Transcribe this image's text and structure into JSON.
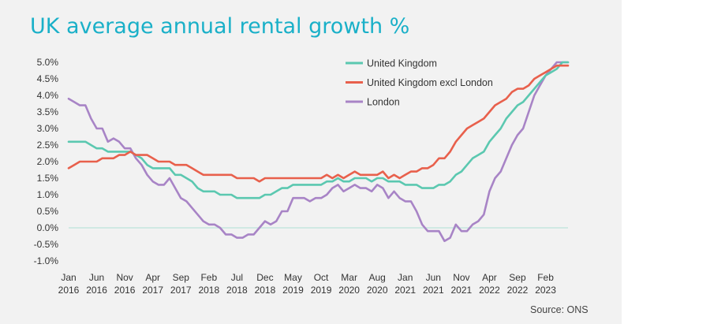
{
  "chart_data": {
    "type": "line",
    "title": "UK average annual rental growth %",
    "source": "Source: ONS",
    "xlabel": "",
    "ylabel": "",
    "ylim": [
      -1.0,
      5.0
    ],
    "y_ticks": [
      "5.0%",
      "4.5%",
      "4.0%",
      "3.5%",
      "3.0%",
      "2.5%",
      "2.0%",
      "1.5%",
      "1.0%",
      "0.5%",
      "0.0%",
      "-0.5%",
      "-1.0%"
    ],
    "x_ticks": [
      {
        "month": "Jan",
        "year": "2016",
        "idx": 0
      },
      {
        "month": "Jun",
        "year": "2016",
        "idx": 5
      },
      {
        "month": "Nov",
        "year": "2016",
        "idx": 10
      },
      {
        "month": "Apr",
        "year": "2017",
        "idx": 15
      },
      {
        "month": "Sep",
        "year": "2017",
        "idx": 20
      },
      {
        "month": "Feb",
        "year": "2018",
        "idx": 25
      },
      {
        "month": "Jul",
        "year": "2018",
        "idx": 30
      },
      {
        "month": "Dec",
        "year": "2018",
        "idx": 35
      },
      {
        "month": "May",
        "year": "2019",
        "idx": 40
      },
      {
        "month": "Oct",
        "year": "2019",
        "idx": 45
      },
      {
        "month": "Mar",
        "year": "2020",
        "idx": 50
      },
      {
        "month": "Aug",
        "year": "2020",
        "idx": 55
      },
      {
        "month": "Jan",
        "year": "2021",
        "idx": 60
      },
      {
        "month": "Jun",
        "year": "2021",
        "idx": 65
      },
      {
        "month": "Nov",
        "year": "2021",
        "idx": 70
      },
      {
        "month": "Apr",
        "year": "2022",
        "idx": 75
      },
      {
        "month": "Sep",
        "year": "2022",
        "idx": 80
      },
      {
        "month": "Feb",
        "year": "2023",
        "idx": 85
      }
    ],
    "x_count": 90,
    "legend_position": "top-right",
    "grid": false,
    "series": [
      {
        "name": "United Kingdom",
        "color": "#5bc8b0",
        "values": [
          2.6,
          2.6,
          2.6,
          2.6,
          2.5,
          2.4,
          2.4,
          2.3,
          2.3,
          2.3,
          2.3,
          2.3,
          2.2,
          2.1,
          1.9,
          1.8,
          1.8,
          1.8,
          1.8,
          1.6,
          1.6,
          1.5,
          1.4,
          1.2,
          1.1,
          1.1,
          1.1,
          1.0,
          1.0,
          1.0,
          0.9,
          0.9,
          0.9,
          0.9,
          0.9,
          1.0,
          1.0,
          1.1,
          1.2,
          1.2,
          1.3,
          1.3,
          1.3,
          1.3,
          1.3,
          1.3,
          1.4,
          1.4,
          1.5,
          1.4,
          1.4,
          1.5,
          1.5,
          1.5,
          1.4,
          1.5,
          1.5,
          1.4,
          1.4,
          1.4,
          1.3,
          1.3,
          1.3,
          1.2,
          1.2,
          1.2,
          1.3,
          1.3,
          1.4,
          1.6,
          1.7,
          1.9,
          2.1,
          2.2,
          2.3,
          2.6,
          2.8,
          3.0,
          3.3,
          3.5,
          3.7,
          3.8,
          4.0,
          4.2,
          4.4,
          4.6,
          4.7,
          4.8,
          5.0,
          5.0
        ]
      },
      {
        "name": "United Kingdom excl London",
        "color": "#e8604c",
        "values": [
          1.8,
          1.9,
          2.0,
          2.0,
          2.0,
          2.0,
          2.1,
          2.1,
          2.1,
          2.2,
          2.2,
          2.3,
          2.2,
          2.2,
          2.2,
          2.1,
          2.0,
          2.0,
          2.0,
          1.9,
          1.9,
          1.9,
          1.8,
          1.7,
          1.6,
          1.6,
          1.6,
          1.6,
          1.6,
          1.6,
          1.5,
          1.5,
          1.5,
          1.5,
          1.4,
          1.5,
          1.5,
          1.5,
          1.5,
          1.5,
          1.5,
          1.5,
          1.5,
          1.5,
          1.5,
          1.5,
          1.6,
          1.5,
          1.6,
          1.5,
          1.6,
          1.7,
          1.6,
          1.6,
          1.6,
          1.6,
          1.7,
          1.5,
          1.6,
          1.5,
          1.6,
          1.7,
          1.7,
          1.8,
          1.8,
          1.9,
          2.1,
          2.1,
          2.3,
          2.6,
          2.8,
          3.0,
          3.1,
          3.2,
          3.3,
          3.5,
          3.7,
          3.8,
          3.9,
          4.1,
          4.2,
          4.2,
          4.3,
          4.5,
          4.6,
          4.7,
          4.8,
          4.9,
          4.9,
          4.9
        ]
      },
      {
        "name": "London",
        "color": "#a884c6",
        "values": [
          3.9,
          3.8,
          3.7,
          3.7,
          3.3,
          3.0,
          3.0,
          2.6,
          2.7,
          2.6,
          2.4,
          2.4,
          2.1,
          1.9,
          1.6,
          1.4,
          1.3,
          1.3,
          1.5,
          1.2,
          0.9,
          0.8,
          0.6,
          0.4,
          0.2,
          0.1,
          0.1,
          0.0,
          -0.2,
          -0.2,
          -0.3,
          -0.3,
          -0.2,
          -0.2,
          0.0,
          0.2,
          0.1,
          0.2,
          0.5,
          0.5,
          0.9,
          0.9,
          0.9,
          0.8,
          0.9,
          0.9,
          1.0,
          1.2,
          1.3,
          1.1,
          1.2,
          1.3,
          1.2,
          1.2,
          1.1,
          1.3,
          1.2,
          0.9,
          1.1,
          0.9,
          0.8,
          0.8,
          0.5,
          0.1,
          -0.1,
          -0.1,
          -0.1,
          -0.4,
          -0.3,
          0.1,
          -0.1,
          -0.1,
          0.1,
          0.2,
          0.4,
          1.1,
          1.5,
          1.7,
          2.1,
          2.5,
          2.8,
          3.0,
          3.5,
          4.0,
          4.3,
          4.6,
          4.8,
          5.0,
          5.0,
          5.0
        ]
      }
    ]
  }
}
